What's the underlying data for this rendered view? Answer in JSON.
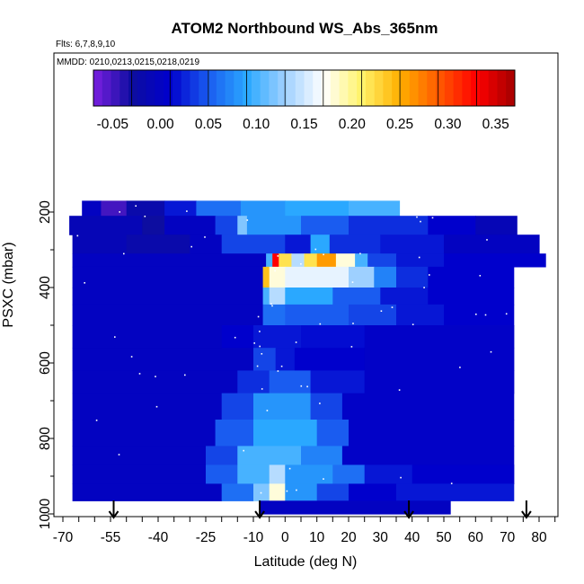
{
  "chart_data": {
    "type": "heatmap",
    "title": "ATOM2 Northbound WS_Abs_365nm",
    "subtitle": "Flts: 6,7,8,9,10",
    "annotation": "MMDD: 0210,0213,0215,0218,0219",
    "xlabel": "Latitude (deg N)",
    "ylabel": "PSXC (mbar)",
    "xlim": [
      -70,
      85
    ],
    "ylim": [
      1000,
      0
    ],
    "x_ticks": [
      "-70",
      "-55",
      "-40",
      "-25",
      "-10",
      "0",
      "10",
      "20",
      "30",
      "40",
      "50",
      "60",
      "70",
      "80"
    ],
    "x_tick_values": [
      -70,
      -55,
      -40,
      -25,
      -10,
      0,
      10,
      20,
      30,
      40,
      50,
      60,
      70,
      80
    ],
    "x_minor_tick_step": 5,
    "y_ticks": [
      "200",
      "400",
      "600",
      "800",
      "1000"
    ],
    "y_tick_values": [
      200,
      400,
      600,
      800,
      1000
    ],
    "colorbar": {
      "ticks": [
        "-0.05",
        "0.00",
        "0.05",
        "0.10",
        "0.15",
        "0.20",
        "0.25",
        "0.30",
        "0.35"
      ],
      "tick_values": [
        -0.05,
        0.0,
        0.05,
        0.1,
        0.15,
        0.2,
        0.25,
        0.3,
        0.35
      ],
      "range": [
        -0.07,
        0.37
      ],
      "colors": [
        "#7a1fe0",
        "#0d0da0",
        "#0000cc",
        "#1a5cf0",
        "#2aa8ff",
        "#9ed0ff",
        "#ffffff",
        "#fff36a",
        "#ffb000",
        "#ff5a00",
        "#ff0000",
        "#a40000"
      ]
    },
    "flight_arrow_latitudes": [
      -54,
      -8,
      39,
      76
    ],
    "rows": [
      {
        "p_top": 170,
        "p_bot": 210,
        "segments": [
          [
            -64,
            -58,
            0.0
          ],
          [
            -58,
            -50,
            -0.05
          ],
          [
            -50,
            -38,
            -0.02
          ],
          [
            -38,
            -28,
            0.02
          ],
          [
            -28,
            -14,
            0.06
          ],
          [
            -14,
            0,
            0.08
          ],
          [
            0,
            20,
            0.09
          ],
          [
            20,
            36,
            0.1
          ]
        ]
      },
      {
        "p_top": 210,
        "p_bot": 260,
        "segments": [
          [
            -68,
            -45,
            -0.01
          ],
          [
            -45,
            -38,
            -0.03
          ],
          [
            -38,
            -22,
            0.0
          ],
          [
            -22,
            -15,
            0.04
          ],
          [
            -15,
            -12,
            0.12
          ],
          [
            -12,
            5,
            0.08
          ],
          [
            5,
            20,
            0.05
          ],
          [
            20,
            45,
            0.03
          ],
          [
            45,
            60,
            0.01
          ],
          [
            60,
            73,
            -0.01
          ]
        ]
      },
      {
        "p_top": 260,
        "p_bot": 310,
        "segments": [
          [
            -67,
            -50,
            -0.01
          ],
          [
            -50,
            -30,
            -0.02
          ],
          [
            -30,
            -20,
            0.0
          ],
          [
            -20,
            0,
            0.04
          ],
          [
            0,
            8,
            0.02
          ],
          [
            8,
            14,
            0.09
          ],
          [
            14,
            30,
            0.03
          ],
          [
            30,
            50,
            0.02
          ],
          [
            50,
            80,
            0.0
          ]
        ]
      },
      {
        "p_top": 310,
        "p_bot": 345,
        "segments": [
          [
            -67,
            -6,
            0.0
          ],
          [
            -6,
            -4,
            0.1
          ],
          [
            -4,
            -2,
            0.33
          ],
          [
            -2,
            2,
            0.22
          ],
          [
            2,
            6,
            0.14
          ],
          [
            6,
            10,
            0.22
          ],
          [
            10,
            16,
            0.26
          ],
          [
            16,
            22,
            0.18
          ],
          [
            22,
            26,
            0.1
          ],
          [
            26,
            35,
            0.04
          ],
          [
            35,
            50,
            0.02
          ],
          [
            50,
            82,
            0.01
          ]
        ]
      },
      {
        "p_top": 345,
        "p_bot": 400,
        "segments": [
          [
            -67,
            -7,
            0.0
          ],
          [
            -7,
            -5,
            0.24
          ],
          [
            -5,
            0,
            0.18
          ],
          [
            0,
            20,
            0.16
          ],
          [
            20,
            28,
            0.13
          ],
          [
            28,
            35,
            0.07
          ],
          [
            35,
            45,
            0.03
          ],
          [
            45,
            72,
            0.01
          ]
        ]
      },
      {
        "p_top": 400,
        "p_bot": 445,
        "segments": [
          [
            -67,
            -7,
            0.0
          ],
          [
            -7,
            -5,
            0.1
          ],
          [
            -5,
            0,
            0.14
          ],
          [
            0,
            15,
            0.09
          ],
          [
            15,
            30,
            0.05
          ],
          [
            30,
            45,
            0.02
          ],
          [
            45,
            72,
            0.01
          ]
        ]
      },
      {
        "p_top": 445,
        "p_bot": 500,
        "segments": [
          [
            -67,
            -7,
            0.0
          ],
          [
            -7,
            0,
            0.06
          ],
          [
            0,
            20,
            0.05
          ],
          [
            20,
            35,
            0.04
          ],
          [
            35,
            50,
            0.02
          ],
          [
            50,
            72,
            0.01
          ]
        ]
      },
      {
        "p_top": 500,
        "p_bot": 560,
        "segments": [
          [
            -67,
            -20,
            0.0
          ],
          [
            -20,
            -10,
            0.01
          ],
          [
            -10,
            5,
            0.02
          ],
          [
            5,
            25,
            0.015
          ],
          [
            25,
            72,
            0.005
          ]
        ]
      },
      {
        "p_top": 560,
        "p_bot": 620,
        "segments": [
          [
            -67,
            -10,
            0.0
          ],
          [
            -10,
            -3,
            0.04
          ],
          [
            -3,
            3,
            0.02
          ],
          [
            3,
            25,
            0.01
          ],
          [
            25,
            72,
            0.005
          ]
        ]
      },
      {
        "p_top": 620,
        "p_bot": 680,
        "segments": [
          [
            -67,
            -15,
            0.0
          ],
          [
            -15,
            -5,
            0.03
          ],
          [
            -5,
            8,
            0.05
          ],
          [
            8,
            25,
            0.02
          ],
          [
            25,
            72,
            0.005
          ]
        ]
      },
      {
        "p_top": 680,
        "p_bot": 750,
        "segments": [
          [
            -67,
            -20,
            0.0
          ],
          [
            -20,
            -10,
            0.04
          ],
          [
            -10,
            8,
            0.08
          ],
          [
            8,
            18,
            0.04
          ],
          [
            18,
            72,
            0.005
          ]
        ]
      },
      {
        "p_top": 750,
        "p_bot": 820,
        "segments": [
          [
            -67,
            -22,
            0.0
          ],
          [
            -22,
            -10,
            0.05
          ],
          [
            -10,
            10,
            0.09
          ],
          [
            10,
            20,
            0.05
          ],
          [
            20,
            72,
            0.005
          ]
        ]
      },
      {
        "p_top": 820,
        "p_bot": 870,
        "segments": [
          [
            -67,
            -25,
            0.0
          ],
          [
            -25,
            -15,
            0.04
          ],
          [
            -15,
            5,
            0.1
          ],
          [
            5,
            18,
            0.07
          ],
          [
            18,
            72,
            0.005
          ]
        ]
      },
      {
        "p_top": 870,
        "p_bot": 920,
        "segments": [
          [
            -67,
            -25,
            0.0
          ],
          [
            -25,
            -15,
            0.05
          ],
          [
            -15,
            -5,
            0.1
          ],
          [
            -5,
            0,
            0.14
          ],
          [
            0,
            15,
            0.08
          ],
          [
            15,
            25,
            0.06
          ],
          [
            25,
            40,
            0.02
          ],
          [
            40,
            72,
            0.01
          ]
        ]
      },
      {
        "p_top": 920,
        "p_bot": 965,
        "segments": [
          [
            -67,
            -20,
            0.0
          ],
          [
            -20,
            -10,
            0.06
          ],
          [
            -10,
            -5,
            0.12
          ],
          [
            -5,
            0,
            0.18
          ],
          [
            0,
            10,
            0.08
          ],
          [
            10,
            20,
            0.04
          ],
          [
            20,
            35,
            0.01
          ],
          [
            35,
            72,
            0.02
          ]
        ]
      },
      {
        "p_top": 965,
        "p_bot": 1000,
        "segments": [
          [
            -8,
            52,
            0.0
          ]
        ]
      }
    ]
  }
}
